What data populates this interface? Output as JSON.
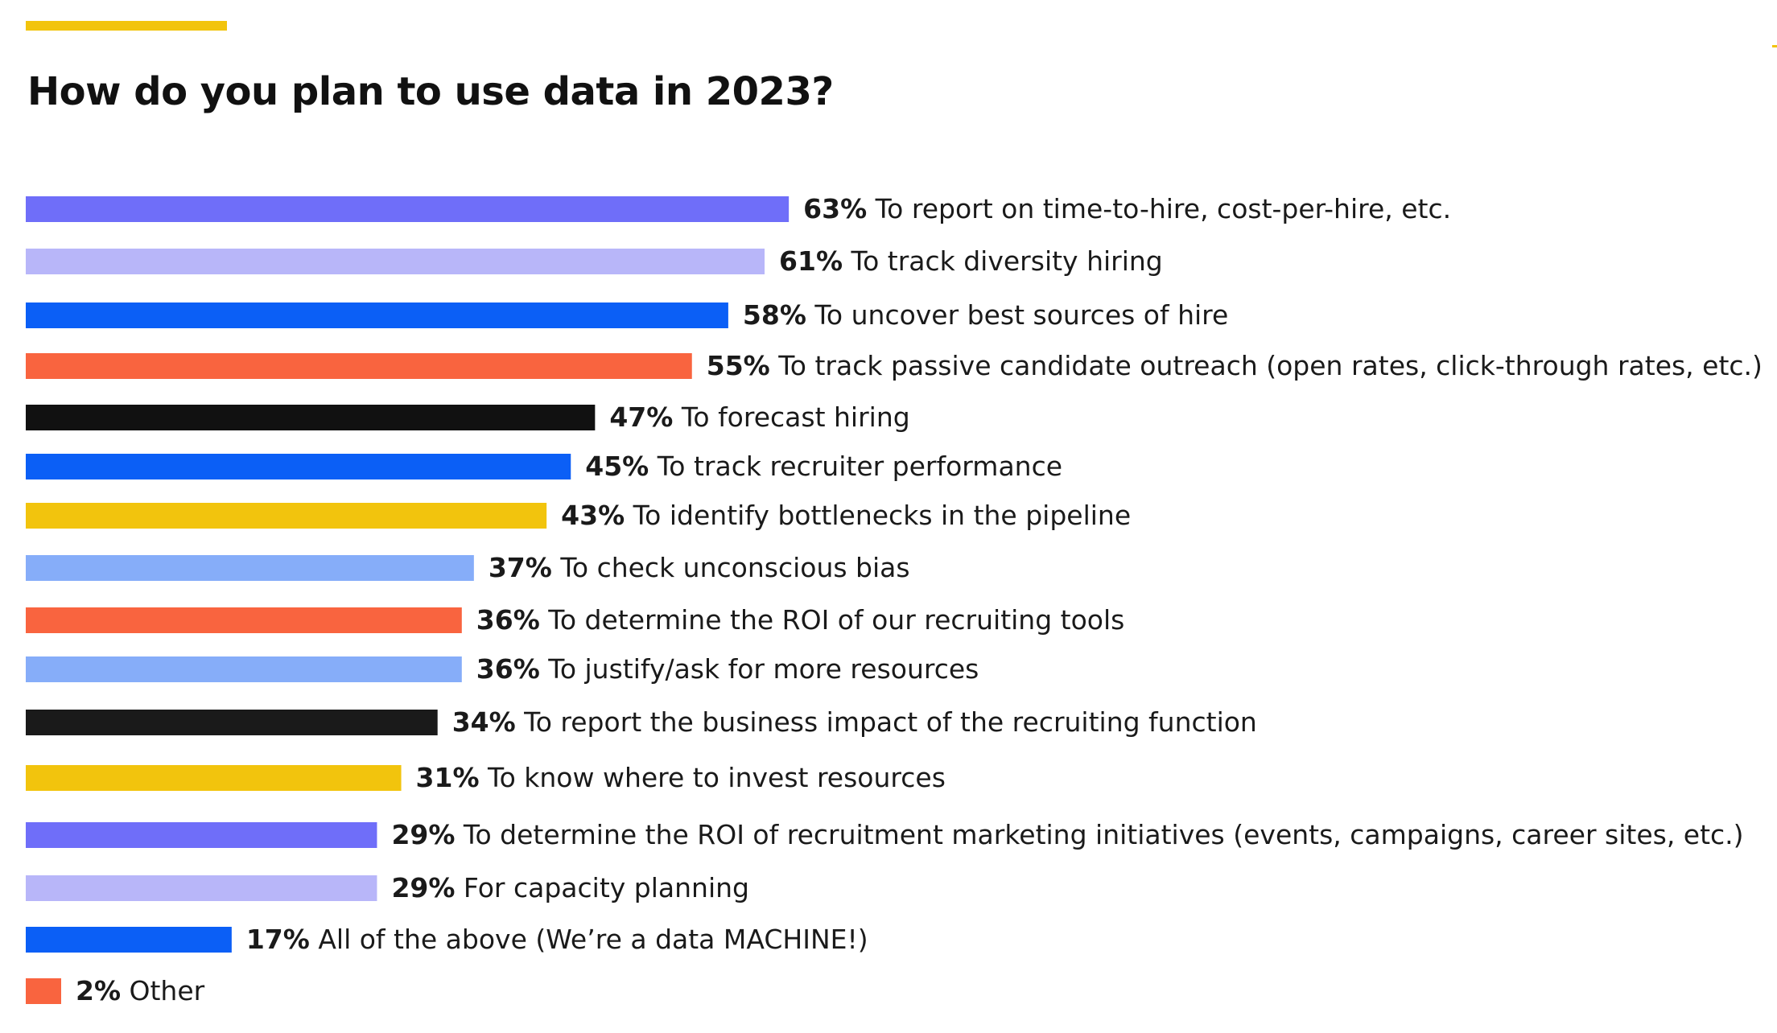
{
  "chart_data": {
    "type": "bar",
    "orientation": "horizontal",
    "title": "How do you plan to use data in 2023?",
    "xlabel": "",
    "ylabel": "",
    "xlim": [
      0,
      100
    ],
    "grid": false,
    "legend": "none",
    "unit": "%",
    "accent_color": "#f2c40d",
    "categories": [
      "To report on time-to-hire, cost-per-hire, etc.",
      "To track diversity hiring",
      "To uncover best sources of hire",
      "To track passive candidate outreach (open rates, click-through rates, etc.)",
      "To forecast hiring",
      "To track recruiter performance",
      "To identify bottlenecks in the pipeline",
      "To check unconscious bias",
      "To determine the ROI of our recruiting tools",
      "To justify/ask for more resources",
      "To report the business impact of the recruiting function",
      "To know where to invest resources",
      "To determine the ROI of recruitment marketing initiatives (events, campaigns, career sites, etc.)",
      "For capacity planning",
      "All of the above (We’re a data MACHINE!)",
      "Other"
    ],
    "values": [
      63,
      61,
      58,
      55,
      47,
      45,
      43,
      37,
      36,
      36,
      34,
      31,
      29,
      29,
      17,
      2
    ],
    "value_labels": [
      "63%",
      "61%",
      "58%",
      "55%",
      "47%",
      "45%",
      "43%",
      "37%",
      "36%",
      "36%",
      "34%",
      "31%",
      "29%",
      "29%",
      "17%",
      "2%"
    ],
    "colors": [
      "#6f6ef9",
      "#b8b6f9",
      "#0b5ff6",
      "#f9643f",
      "#111111",
      "#0b5ff6",
      "#f2c40d",
      "#86adf9",
      "#f9643f",
      "#86adf9",
      "#1a1a1a",
      "#f2c40d",
      "#6f6ef9",
      "#b8b6f9",
      "#0b5ff6",
      "#f9643f"
    ]
  }
}
